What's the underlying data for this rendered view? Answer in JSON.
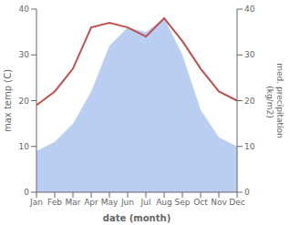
{
  "chart_data": {
    "type": "line",
    "categories": [
      "Jan",
      "Feb",
      "Mar",
      "Apr",
      "May",
      "Jun",
      "Jul",
      "Aug",
      "Sep",
      "Oct",
      "Nov",
      "Dec"
    ],
    "series": [
      {
        "type": "area",
        "color": "#aec6f0",
        "values": [
          9,
          11,
          15,
          22,
          32,
          36,
          35,
          38,
          30,
          18,
          12,
          10
        ]
      },
      {
        "type": "line",
        "color": "#c0504d",
        "values": [
          19,
          22,
          27,
          36,
          37,
          36,
          34,
          38,
          33,
          27,
          22,
          20
        ]
      }
    ],
    "xlabel": "date (month)",
    "ylabel": "max temp (C)",
    "y2label": "med. precipitation\n (kg/m2)",
    "ylim": [
      0,
      40
    ],
    "yticks": [
      0,
      10,
      20,
      30,
      40
    ],
    "y2lim": [
      0,
      40
    ],
    "y2ticks": [
      0,
      10,
      20,
      30,
      40
    ]
  }
}
